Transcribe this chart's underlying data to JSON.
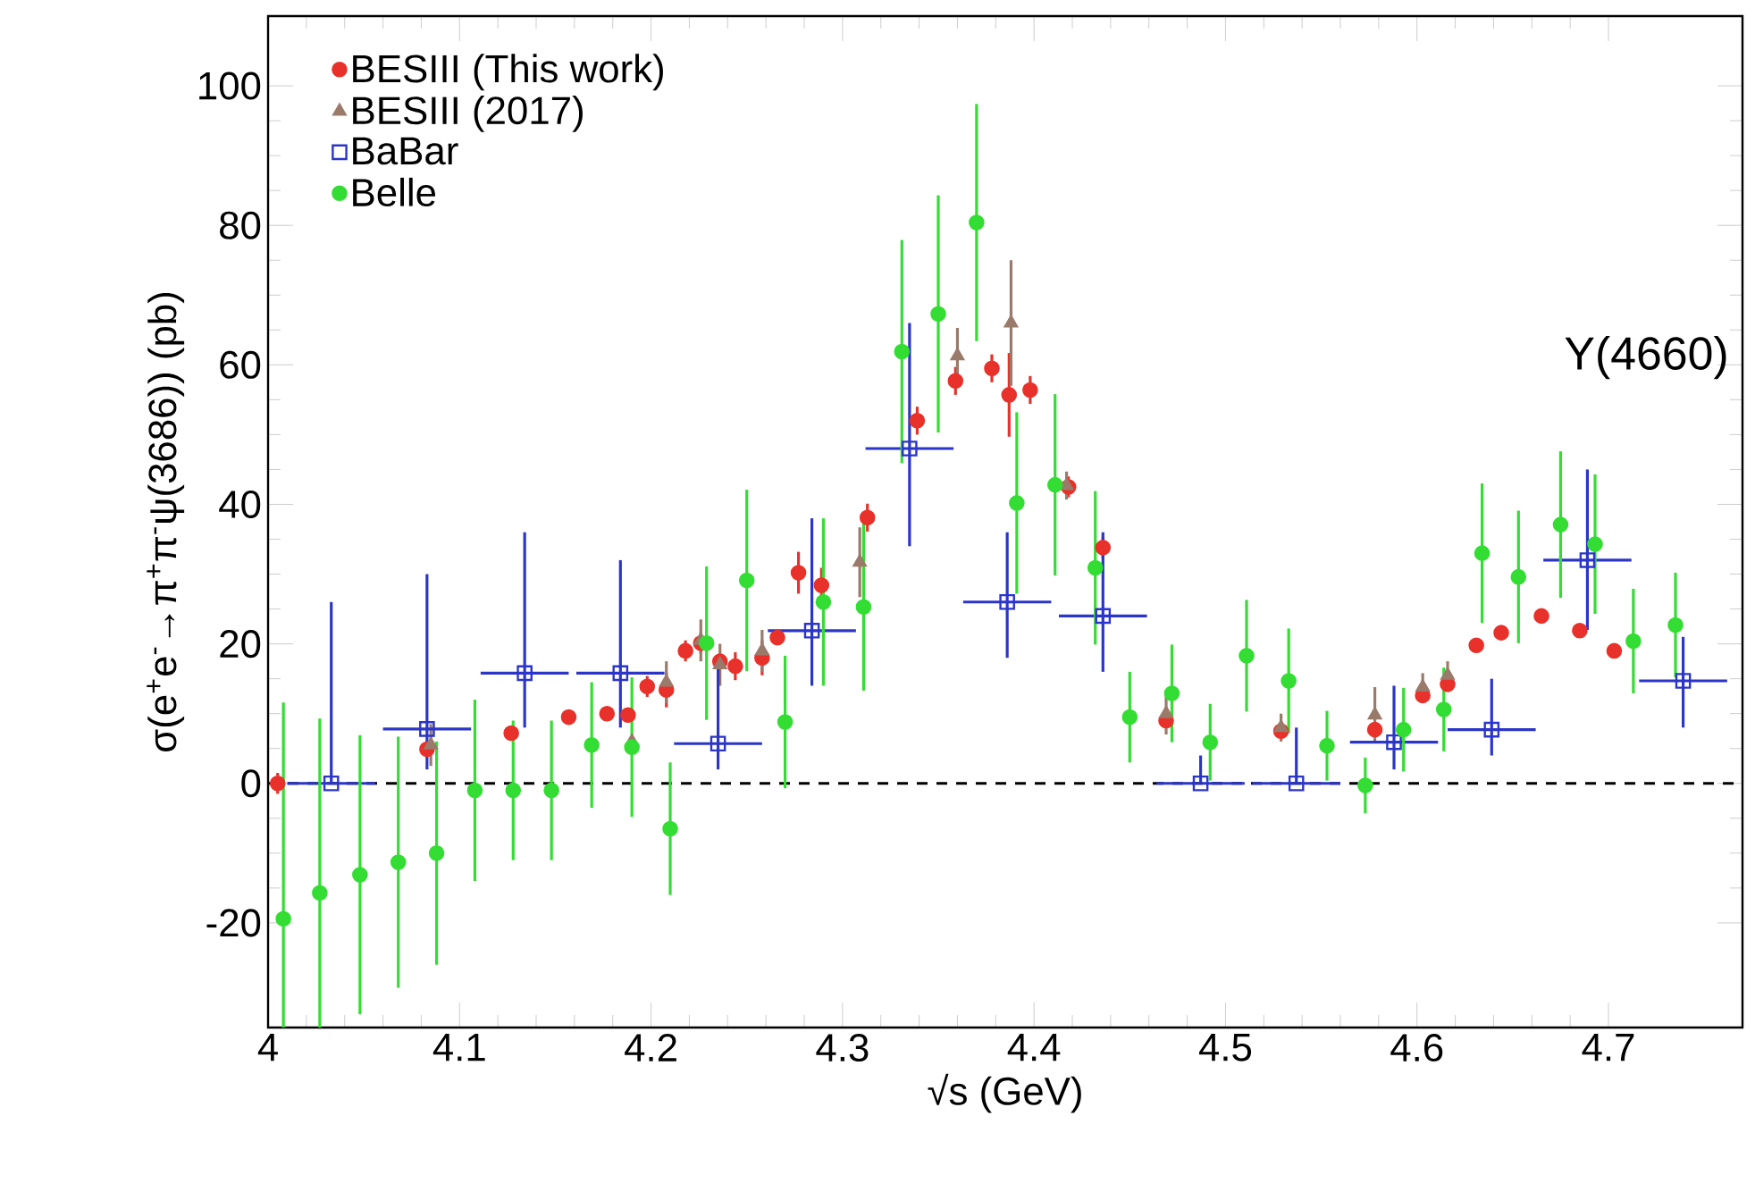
{
  "chart_data": {
    "type": "scatter",
    "xlabel": "√s (GeV)",
    "ylabel": "σ(e$^{+}$e$^{-}$→π$^{+}$π$^{-}$ψ(3686)) (pb)",
    "xlim": [
      4,
      4.77
    ],
    "ylim": [
      -35,
      110
    ],
    "xticks": [
      4,
      4.1,
      4.2,
      4.3,
      4.4,
      4.5,
      4.6,
      4.7
    ],
    "yticks": [
      -20,
      0,
      20,
      40,
      60,
      80,
      100
    ],
    "legend": "top left",
    "grid": false,
    "ref_lines": [
      {
        "axis": "y",
        "value": 0,
        "color": "#000000",
        "line_style": "dashed"
      }
    ],
    "annotations": [
      "Y(4660)"
    ],
    "series": [
      {
        "name": "BESIII (This work)",
        "color": "#e8312a",
        "marker": "circle",
        "x": [
          4.005,
          4.083,
          4.127,
          4.157,
          4.177,
          4.188,
          4.198,
          4.208,
          4.218,
          4.226,
          4.236,
          4.244,
          4.258,
          4.266,
          4.277,
          4.289,
          4.313,
          4.339,
          4.359,
          4.378,
          4.387,
          4.398,
          4.418,
          4.436,
          4.469,
          4.529,
          4.578,
          4.603,
          4.616,
          4.631,
          4.644,
          4.665,
          4.685,
          4.703
        ],
        "values": [
          0,
          4.9,
          7.2,
          9.5,
          10,
          9.8,
          13.9,
          13.4,
          19,
          20.1,
          17.5,
          16.8,
          18,
          20.9,
          30.2,
          28.4,
          38.1,
          52,
          57.7,
          59.5,
          55.7,
          56.4,
          42.5,
          33.8,
          9,
          7.5,
          7.7,
          12.6,
          14.2,
          19.8,
          21.6,
          24,
          21.9,
          19
        ],
        "errors": [
          1.5,
          null,
          1,
          1,
          1,
          1,
          1.5,
          2.5,
          1.5,
          1.5,
          null,
          2,
          2.5,
          1,
          3,
          2.5,
          2,
          2,
          2,
          2,
          6,
          2,
          1.5,
          1.5,
          1,
          1,
          1,
          1,
          1,
          1,
          1,
          1,
          1,
          1
        ]
      },
      {
        "name": "BESIII (2017)",
        "color": "#9a7a6a",
        "marker": "triangle",
        "x": [
          4.085,
          4.19,
          4.208,
          4.226,
          4.236,
          4.258,
          4.309,
          4.36,
          4.388,
          4.417,
          4.469,
          4.529,
          4.578,
          4.603,
          4.616
        ],
        "values": [
          5.5,
          6,
          14.5,
          20.5,
          17,
          19,
          31.7,
          61.3,
          66,
          42.7,
          10,
          8,
          9.8,
          13.8,
          15.5
        ],
        "errors": [
          3,
          null,
          3,
          3,
          3,
          3,
          5,
          4,
          9,
          2,
          3,
          2,
          4,
          2,
          2
        ]
      },
      {
        "name": "BaBar",
        "color": "#2b35c8",
        "marker": "square",
        "x": [
          4.033,
          4.083,
          4.134,
          4.184,
          4.235,
          4.284,
          4.335,
          4.386,
          4.436,
          4.487,
          4.537,
          4.588,
          4.639,
          4.689,
          4.739
        ],
        "values": [
          0,
          7.8,
          15.8,
          15.8,
          5.7,
          21.9,
          48,
          26,
          24,
          0,
          0,
          5.9,
          7.7,
          32,
          14.7
        ],
        "errors": [
          [
            0,
            26
          ],
          [
            2,
            30
          ],
          [
            8,
            36
          ],
          [
            8,
            32
          ],
          [
            2,
            18
          ],
          [
            14,
            38
          ],
          [
            34,
            66
          ],
          [
            18,
            36
          ],
          [
            16,
            36
          ],
          [
            0,
            4
          ],
          [
            0,
            8
          ],
          [
            2,
            14
          ],
          [
            4,
            15
          ],
          [
            22,
            45
          ],
          [
            8,
            21
          ]
        ],
        "xerrors": [
          0.023,
          0.023,
          0.023,
          0.023,
          0.023,
          0.023,
          0.023,
          0.023,
          0.023,
          0.023,
          0.023,
          0.023,
          0.023,
          0.023,
          0.023
        ]
      },
      {
        "name": "Belle",
        "color": "#33dd33",
        "marker": "circle",
        "x": [
          4.008,
          4.027,
          4.048,
          4.068,
          4.088,
          4.108,
          4.128,
          4.148,
          4.169,
          4.19,
          4.21,
          4.229,
          4.25,
          4.27,
          4.29,
          4.311,
          4.331,
          4.35,
          4.37,
          4.391,
          4.411,
          4.432,
          4.45,
          4.472,
          4.492,
          4.511,
          4.533,
          4.553,
          4.573,
          4.593,
          4.614,
          4.634,
          4.653,
          4.675,
          4.693,
          4.713,
          4.735
        ],
        "values": [
          -19.4,
          -15.7,
          -13.1,
          -11.3,
          -10,
          -1,
          -1,
          -1,
          5.5,
          5.2,
          -6.5,
          20.1,
          29.1,
          8.8,
          26,
          25.3,
          61.9,
          67.3,
          80.4,
          40.2,
          42.8,
          30.9,
          9.5,
          12.9,
          5.9,
          18.3,
          14.7,
          5.4,
          -0.3,
          7.7,
          10.6,
          33,
          29.6,
          37.1,
          34.3,
          20.4,
          22.7
        ],
        "errors": [
          [
            -35,
            11.6
          ],
          [
            -35,
            9.3
          ],
          20,
          18,
          16,
          13,
          10,
          10,
          9,
          10,
          9.5,
          11,
          13,
          9.5,
          12,
          12,
          16,
          17,
          17,
          13,
          13,
          11,
          6.5,
          7,
          5.5,
          8,
          7.5,
          5,
          4,
          6,
          6,
          10,
          9.5,
          10.5,
          10,
          7.5,
          7.5
        ]
      }
    ]
  }
}
